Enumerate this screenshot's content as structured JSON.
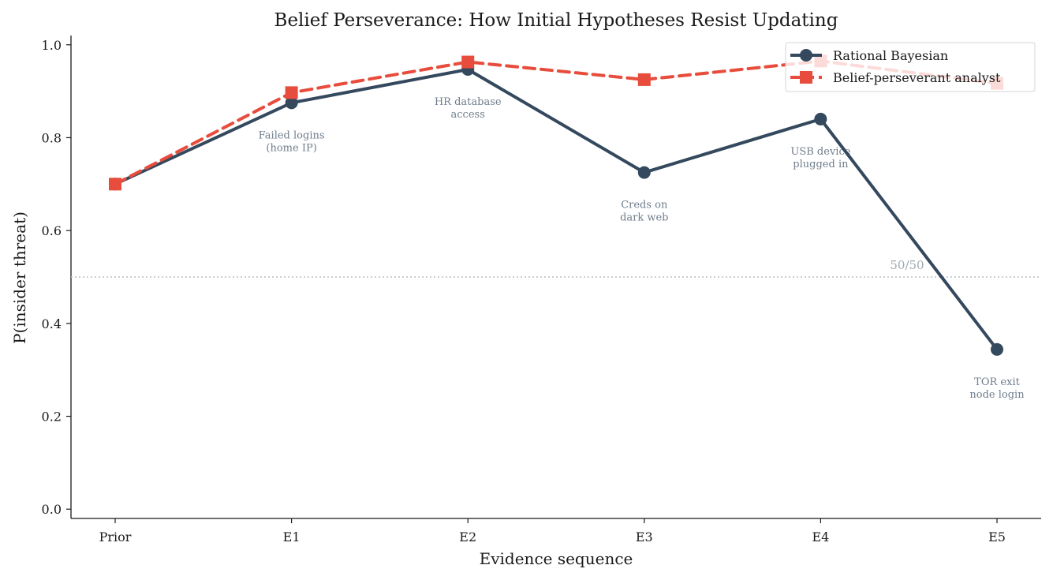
{
  "chart_data": {
    "type": "line",
    "title": "Belief Perseverance: How Initial Hypotheses Resist Updating",
    "xlabel": "Evidence sequence",
    "ylabel": "P(insider threat)",
    "categories": [
      "Prior",
      "E1",
      "E2",
      "E3",
      "E4",
      "E5"
    ],
    "ylim": [
      -0.02,
      1.02
    ],
    "yticks": [
      0.0,
      0.2,
      0.4,
      0.6,
      0.8,
      1.0
    ],
    "ytick_labels": [
      "0.0",
      "0.2",
      "0.4",
      "0.6",
      "0.8",
      "1.0"
    ],
    "grid": false,
    "legend_position": "top-right",
    "series": [
      {
        "name": "Rational Bayesian",
        "values": [
          0.7,
          0.875,
          0.947,
          0.725,
          0.84,
          0.344
        ],
        "color": "#34495e",
        "line_style": "solid",
        "marker": "circle"
      },
      {
        "name": "Belief-perseverant analyst",
        "values": [
          0.7,
          0.897,
          0.963,
          0.925,
          0.965,
          0.917
        ],
        "color": "#e74c3c",
        "line_style": "dashed",
        "marker": "square"
      }
    ],
    "reference_line": {
      "y": 0.5,
      "label": "50/50",
      "color": "#b8bec4"
    },
    "annotations": [
      {
        "x_index": 1,
        "lines": [
          "Failed logins",
          "(home IP)"
        ]
      },
      {
        "x_index": 2,
        "lines": [
          "HR database",
          "access"
        ]
      },
      {
        "x_index": 3,
        "lines": [
          "Creds on",
          "dark web"
        ]
      },
      {
        "x_index": 4,
        "lines": [
          "USB device",
          "plugged in"
        ]
      },
      {
        "x_index": 5,
        "lines": [
          "TOR exit",
          "node login"
        ]
      }
    ]
  }
}
